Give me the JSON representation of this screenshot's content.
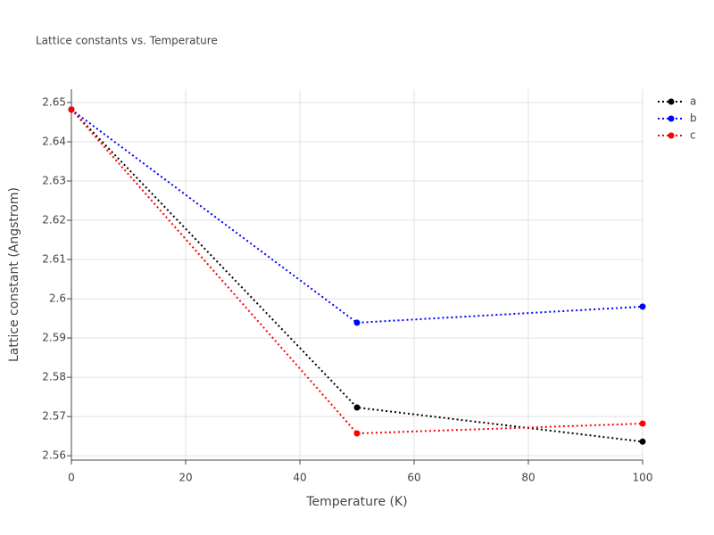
{
  "chart_data": {
    "type": "line",
    "title": "Lattice constants vs. Temperature",
    "x_label": "Temperature (K)",
    "y_label": "Lattice constant (Angstrom)",
    "x": [
      0,
      50,
      100
    ],
    "series": [
      {
        "name": "a",
        "color": "#000000",
        "values": [
          2.6482,
          2.5723,
          2.5636
        ]
      },
      {
        "name": "b",
        "color": "#0000ff",
        "values": [
          2.6482,
          2.5939,
          2.598
        ]
      },
      {
        "name": "c",
        "color": "#ff0000",
        "values": [
          2.6482,
          2.5657,
          2.5682
        ]
      }
    ],
    "xlim": [
      0,
      100
    ],
    "xticks": [
      0,
      20,
      40,
      60,
      80,
      100
    ],
    "ylim": [
      2.5589,
      2.6534
    ],
    "yticks": [
      2.56,
      2.57,
      2.58,
      2.59,
      2.6,
      2.61,
      2.62,
      2.63,
      2.64,
      2.65
    ],
    "grid": true,
    "legend": "top-right"
  }
}
